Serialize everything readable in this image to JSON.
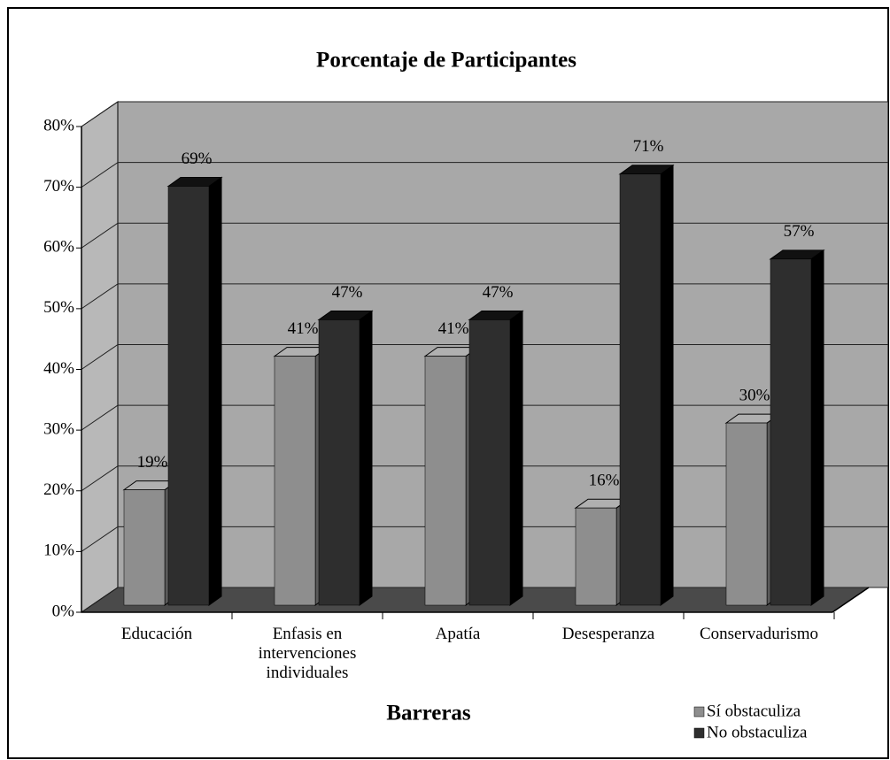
{
  "chart_data": {
    "type": "bar3d",
    "title": "Porcentaje de Participantes",
    "xlabel": "Barreras",
    "categories": [
      "Educación",
      "Enfasis en intervenciones individuales",
      "Apatía",
      "Desesperanza",
      "Conservadurismo"
    ],
    "series": [
      {
        "name": "Sí obstaculiza",
        "color": "#8e8e8e",
        "values": [
          19,
          41,
          41,
          16,
          30
        ],
        "value_labels": [
          "19%",
          "41%",
          "41%",
          "16%",
          "30%"
        ]
      },
      {
        "name": "No obstaculiza",
        "color": "#2e2e2e",
        "values": [
          69,
          47,
          47,
          71,
          57
        ],
        "value_labels": [
          "69%",
          "47%",
          "47%",
          "71%",
          "57%"
        ]
      }
    ],
    "ylim": [
      0,
      80
    ],
    "yticks": [
      {
        "value": 0,
        "label": "0%"
      },
      {
        "value": 10,
        "label": "10%"
      },
      {
        "value": 20,
        "label": "20%"
      },
      {
        "value": 30,
        "label": "30%"
      },
      {
        "value": 40,
        "label": "40%"
      },
      {
        "value": 50,
        "label": "50%"
      },
      {
        "value": 60,
        "label": "60%"
      },
      {
        "value": 70,
        "label": "70%"
      },
      {
        "value": 80,
        "label": "80%"
      }
    ],
    "grid": true,
    "legend": "lower right"
  }
}
